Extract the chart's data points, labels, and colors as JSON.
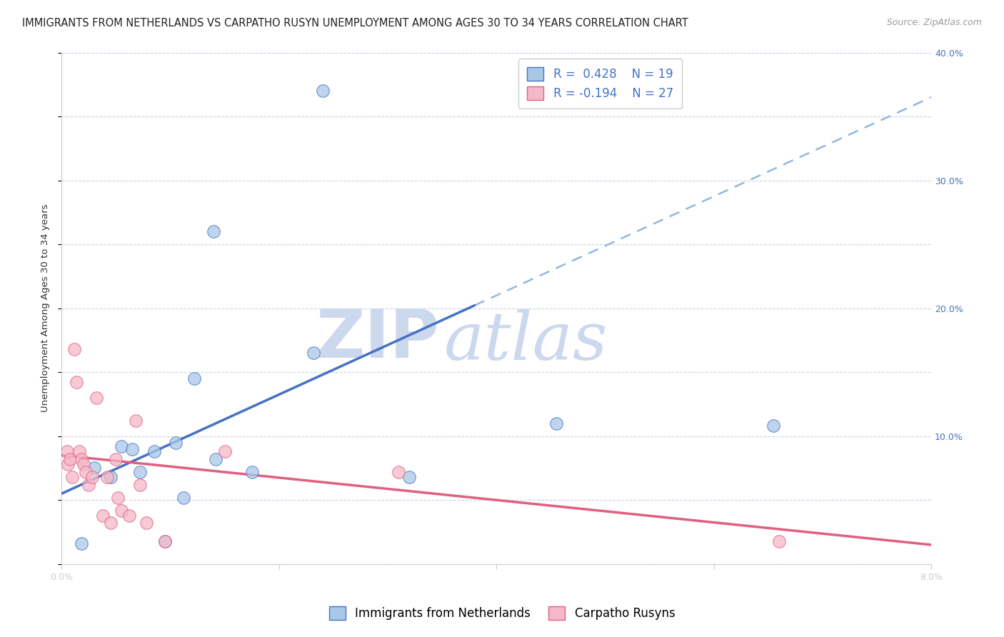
{
  "title": "IMMIGRANTS FROM NETHERLANDS VS CARPATHO RUSYN UNEMPLOYMENT AMONG AGES 30 TO 34 YEARS CORRELATION CHART",
  "source": "Source: ZipAtlas.com",
  "ylabel": "Unemployment Among Ages 30 to 34 years",
  "xlim": [
    0.0,
    8.0
  ],
  "ylim": [
    0.0,
    40.0
  ],
  "yticks": [
    0,
    10,
    20,
    30,
    40
  ],
  "xticks": [
    0,
    2,
    4,
    6,
    8
  ],
  "blue_R": 0.428,
  "blue_N": 19,
  "pink_R": -0.194,
  "pink_N": 27,
  "blue_fill_color": "#a8c8e8",
  "pink_fill_color": "#f4b8c8",
  "blue_line_color": "#4472c4",
  "pink_line_color": "#e06080",
  "dashed_line_color": "#90b8e0",
  "background_color": "#ffffff",
  "grid_color": "#c8d4e8",
  "watermark_color": "#ccd8ee",
  "blue_points_x": [
    2.4,
    1.4,
    0.55,
    0.65,
    0.85,
    1.05,
    1.22,
    1.42,
    0.45,
    0.72,
    2.32,
    1.75,
    3.2,
    4.55,
    6.55,
    0.95,
    1.12,
    0.18,
    0.3
  ],
  "blue_points_y": [
    37.0,
    26.0,
    9.2,
    9.0,
    8.8,
    9.5,
    14.5,
    8.2,
    6.8,
    7.2,
    16.5,
    7.2,
    6.8,
    11.0,
    10.8,
    1.8,
    5.2,
    1.6,
    7.5
  ],
  "pink_points_x": [
    0.05,
    0.06,
    0.08,
    0.1,
    0.12,
    0.14,
    0.16,
    0.18,
    0.2,
    0.22,
    0.25,
    0.28,
    0.32,
    0.38,
    0.42,
    0.45,
    0.5,
    0.52,
    0.55,
    0.62,
    0.68,
    0.72,
    0.78,
    0.95,
    1.5,
    3.1,
    6.6
  ],
  "pink_points_y": [
    8.8,
    7.8,
    8.2,
    6.8,
    16.8,
    14.2,
    8.8,
    8.2,
    7.8,
    7.2,
    6.2,
    6.8,
    13.0,
    3.8,
    6.8,
    3.2,
    8.2,
    5.2,
    4.2,
    3.8,
    11.2,
    6.2,
    3.2,
    1.8,
    8.8,
    7.2,
    1.8
  ],
  "blue_line_x0": 0.0,
  "blue_line_y0": 5.5,
  "blue_line_x1": 8.0,
  "blue_line_y1": 36.5,
  "blue_solid_x_max": 3.8,
  "pink_line_x0": 0.0,
  "pink_line_y0": 8.5,
  "pink_line_x1": 8.0,
  "pink_line_y1": 1.5,
  "title_fontsize": 10.5,
  "source_fontsize": 9,
  "axis_label_fontsize": 9.5,
  "tick_fontsize": 9,
  "legend_fontsize": 12,
  "marker_size": 160
}
